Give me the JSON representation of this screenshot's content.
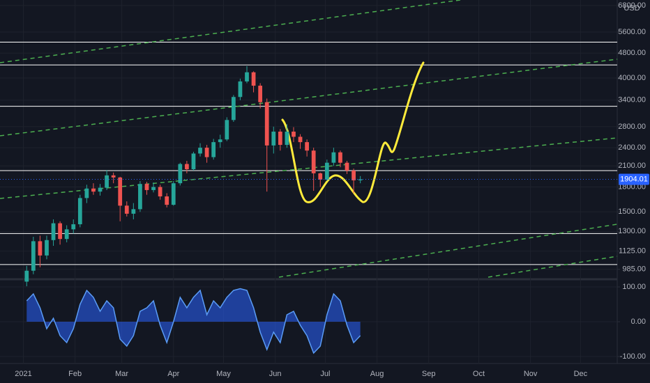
{
  "chart_data": [
    {
      "type": "candlestick",
      "currency": "USD",
      "log_scale": true,
      "up_color": "#26a69a",
      "down_color": "#ef5350",
      "x": [
        2,
        6,
        10,
        14,
        18,
        22,
        26,
        30,
        34,
        38,
        42,
        46,
        50,
        54,
        58,
        62,
        66,
        70,
        74,
        78,
        82,
        86,
        90,
        94,
        98,
        102,
        106,
        110,
        114,
        118,
        122,
        126,
        130,
        134,
        138,
        142,
        146,
        150,
        154,
        158,
        162,
        166,
        170,
        174,
        178,
        182,
        186,
        190,
        194,
        198,
        202
      ],
      "open": [
        900,
        975,
        1210,
        1090,
        1220,
        1380,
        1230,
        1320,
        1370,
        1660,
        1780,
        1740,
        1790,
        1960,
        1930,
        1570,
        1480,
        1530,
        1840,
        1760,
        1800,
        1680,
        1580,
        1850,
        2130,
        2050,
        2300,
        2400,
        2240,
        2500,
        2550,
        2940,
        3480,
        3900,
        4170,
        3780,
        3350,
        2440,
        2700,
        2450,
        2700,
        2600,
        2500,
        2350,
        1990,
        1900,
        2150,
        2320,
        2150,
        2030,
        1890
      ],
      "high": [
        1010,
        1250,
        1260,
        1260,
        1420,
        1400,
        1360,
        1420,
        1700,
        1830,
        1850,
        1840,
        2040,
        2000,
        1940,
        1620,
        1600,
        1880,
        1870,
        1860,
        1830,
        1720,
        1880,
        2150,
        2180,
        2330,
        2480,
        2450,
        2560,
        2640,
        3000,
        3530,
        3980,
        4360,
        4200,
        3850,
        3440,
        2800,
        2750,
        2850,
        2790,
        2650,
        2550,
        2400,
        2000,
        2200,
        2400,
        2350,
        2180,
        2060,
        1950
      ],
      "low": [
        870,
        950,
        1000,
        1060,
        1170,
        1180,
        1200,
        1280,
        1340,
        1600,
        1700,
        1690,
        1760,
        1850,
        1400,
        1450,
        1420,
        1500,
        1700,
        1730,
        1640,
        1550,
        1570,
        1820,
        1990,
        2030,
        2250,
        2150,
        2200,
        2400,
        2520,
        2900,
        3400,
        3850,
        3600,
        3200,
        1740,
        2300,
        2350,
        2400,
        2500,
        2380,
        2250,
        1750,
        1800,
        1880,
        2100,
        2080,
        1980,
        1720,
        1850
      ],
      "close": [
        975,
        1210,
        1090,
        1220,
        1380,
        1230,
        1320,
        1370,
        1660,
        1780,
        1740,
        1790,
        1960,
        1930,
        1570,
        1480,
        1530,
        1840,
        1760,
        1800,
        1680,
        1580,
        1850,
        2130,
        2050,
        2300,
        2400,
        2240,
        2500,
        2550,
        2940,
        3480,
        3900,
        4170,
        3780,
        3350,
        2440,
        2700,
        2450,
        2700,
        2600,
        2500,
        2350,
        1990,
        1900,
        2150,
        2320,
        2150,
        2030,
        1890,
        1904
      ],
      "levels": [
        5200,
        4400,
        3250,
        2030,
        1280,
        1020
      ],
      "level_color": "#ffffff",
      "last_price": 1904.01,
      "last_price_color": "#2962ff",
      "xlim": [
        -14,
        356
      ],
      "xticks": [
        {
          "value": 0,
          "label": "2021"
        },
        {
          "value": 31,
          "label": "Feb"
        },
        {
          "value": 59,
          "label": "Mar"
        },
        {
          "value": 90,
          "label": "Apr"
        },
        {
          "value": 120,
          "label": "May"
        },
        {
          "value": 151,
          "label": "Jun"
        },
        {
          "value": 181,
          "label": "Jul"
        },
        {
          "value": 212,
          "label": "Aug"
        },
        {
          "value": 243,
          "label": "Sep"
        },
        {
          "value": 273,
          "label": "Oct"
        },
        {
          "value": 304,
          "label": "Nov"
        },
        {
          "value": 334,
          "label": "Dec"
        }
      ],
      "ylim": [
        930,
        7080
      ],
      "yticks": [
        {
          "value": 985,
          "label": "985.00"
        },
        {
          "value": 1125,
          "label": "1125.00"
        },
        {
          "value": 1300,
          "label": "1300.00"
        },
        {
          "value": 1500,
          "label": "1500.00"
        },
        {
          "value": 1800,
          "label": "1800.00"
        },
        {
          "value": 2100,
          "label": "2100.00"
        },
        {
          "value": 2400,
          "label": "2400.00"
        },
        {
          "value": 2800,
          "label": "2800.00"
        },
        {
          "value": 3400,
          "label": "3400.00"
        },
        {
          "value": 4000,
          "label": "4000.00"
        },
        {
          "value": 4800,
          "label": "4800.00"
        },
        {
          "value": 5600,
          "label": "5600.00"
        },
        {
          "value": 6800,
          "label": "6800.00"
        }
      ],
      "grid": true
    },
    {
      "type": "line",
      "color": "#5b9cf6",
      "fill": "#2962ff",
      "x": [
        2,
        6,
        10,
        14,
        18,
        22,
        26,
        30,
        34,
        38,
        42,
        46,
        50,
        54,
        58,
        62,
        66,
        70,
        74,
        78,
        82,
        86,
        90,
        94,
        98,
        102,
        106,
        110,
        114,
        118,
        122,
        126,
        130,
        134,
        138,
        142,
        146,
        150,
        154,
        158,
        162,
        166,
        170,
        174,
        178,
        182,
        186,
        190,
        194,
        198,
        202
      ],
      "values": [
        60,
        80,
        40,
        -20,
        10,
        -40,
        -60,
        -20,
        50,
        90,
        70,
        30,
        60,
        40,
        -50,
        -70,
        -40,
        30,
        40,
        60,
        -10,
        -60,
        0,
        70,
        40,
        70,
        90,
        20,
        60,
        40,
        70,
        90,
        95,
        90,
        40,
        -30,
        -80,
        -30,
        -60,
        20,
        30,
        -10,
        -40,
        -90,
        -70,
        20,
        80,
        60,
        -10,
        -60,
        -40
      ],
      "xlim": [
        -14,
        356
      ],
      "ylim": [
        -120,
        116
      ],
      "yticks": [
        {
          "value": 100,
          "label": "100.00"
        },
        {
          "value": 0,
          "label": "0.00"
        },
        {
          "value": -100,
          "label": "-100.00"
        }
      ],
      "grid": true
    }
  ]
}
